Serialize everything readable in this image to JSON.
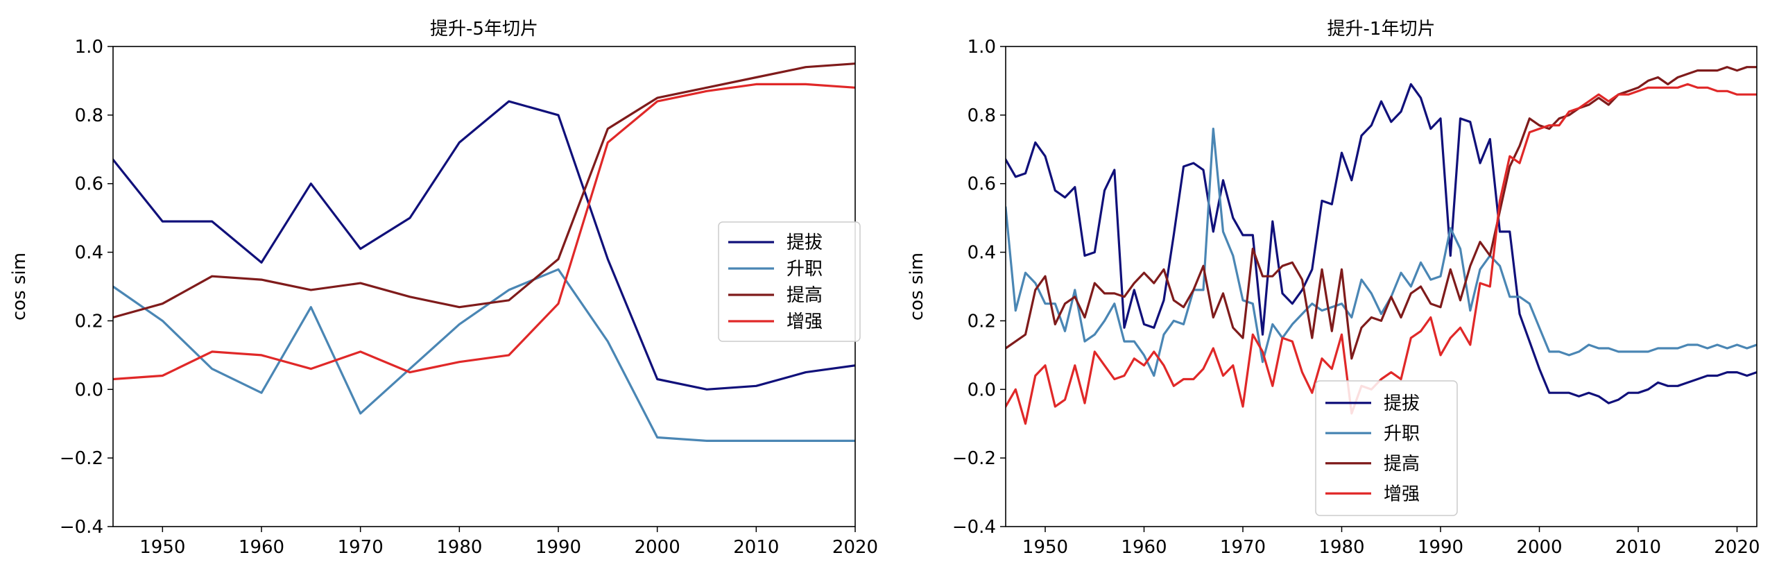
{
  "chart_data": [
    {
      "type": "line",
      "title": "提升-5年切片",
      "xlabel": "",
      "ylabel": "cos sim",
      "xlim": [
        1945,
        2020
      ],
      "ylim": [
        -0.4,
        1.0
      ],
      "xticks": [
        "1950",
        "1960",
        "1970",
        "1980",
        "1990",
        "2000",
        "2010",
        "2020"
      ],
      "yticks": [
        "−0.4",
        "−0.2",
        "0.0",
        "0.2",
        "0.4",
        "0.6",
        "0.8",
        "1.0"
      ],
      "legend_position": "center-right",
      "x": [
        1945,
        1950,
        1955,
        1960,
        1965,
        1970,
        1975,
        1980,
        1985,
        1990,
        1995,
        2000,
        2005,
        2010,
        2015,
        2020
      ],
      "series": [
        {
          "name": "提拔",
          "color": "#10107a",
          "values": [
            0.67,
            0.49,
            0.49,
            0.37,
            0.6,
            0.41,
            0.5,
            0.72,
            0.84,
            0.8,
            0.38,
            0.03,
            0.0,
            0.01,
            0.05,
            0.07
          ]
        },
        {
          "name": "升职",
          "color": "#4a86b4",
          "values": [
            0.3,
            0.2,
            0.06,
            -0.01,
            0.24,
            -0.07,
            0.06,
            0.19,
            0.29,
            0.35,
            0.14,
            -0.14,
            -0.15,
            -0.15,
            -0.15,
            -0.15
          ]
        },
        {
          "name": "提高",
          "color": "#7f1b1b",
          "values": [
            0.21,
            0.25,
            0.33,
            0.32,
            0.29,
            0.31,
            0.27,
            0.24,
            0.26,
            0.38,
            0.76,
            0.85,
            0.88,
            0.91,
            0.94,
            0.95
          ]
        },
        {
          "name": "增强",
          "color": "#e02828",
          "values": [
            0.03,
            0.04,
            0.11,
            0.1,
            0.06,
            0.11,
            0.05,
            0.08,
            0.1,
            0.25,
            0.72,
            0.84,
            0.87,
            0.89,
            0.89,
            0.88
          ]
        }
      ]
    },
    {
      "type": "line",
      "title": "提升-1年切片",
      "xlabel": "",
      "ylabel": "cos sim",
      "xlim": [
        1946,
        2022
      ],
      "ylim": [
        -0.4,
        1.0
      ],
      "xticks": [
        "1950",
        "1960",
        "1970",
        "1980",
        "1990",
        "2000",
        "2010",
        "2020"
      ],
      "yticks": [
        "−0.4",
        "−0.2",
        "0.0",
        "0.2",
        "0.4",
        "0.6",
        "0.8",
        "1.0"
      ],
      "legend_position": "lower-center",
      "x": [
        1946,
        1947,
        1948,
        1949,
        1950,
        1951,
        1952,
        1953,
        1954,
        1955,
        1956,
        1957,
        1958,
        1959,
        1960,
        1961,
        1962,
        1963,
        1964,
        1965,
        1966,
        1967,
        1968,
        1969,
        1970,
        1971,
        1972,
        1973,
        1974,
        1975,
        1976,
        1977,
        1978,
        1979,
        1980,
        1981,
        1982,
        1983,
        1984,
        1985,
        1986,
        1987,
        1988,
        1989,
        1990,
        1991,
        1992,
        1993,
        1994,
        1995,
        1996,
        1997,
        1998,
        1999,
        2000,
        2001,
        2002,
        2003,
        2004,
        2005,
        2006,
        2007,
        2008,
        2009,
        2010,
        2011,
        2012,
        2013,
        2014,
        2015,
        2016,
        2017,
        2018,
        2019,
        2020,
        2021,
        2022
      ],
      "series": [
        {
          "name": "提拔",
          "color": "#10107a",
          "values": [
            0.67,
            0.62,
            0.63,
            0.72,
            0.68,
            0.58,
            0.56,
            0.59,
            0.39,
            0.4,
            0.58,
            0.64,
            0.18,
            0.29,
            0.19,
            0.18,
            0.26,
            0.45,
            0.65,
            0.66,
            0.64,
            0.46,
            0.61,
            0.5,
            0.45,
            0.45,
            0.16,
            0.49,
            0.28,
            0.25,
            0.29,
            0.35,
            0.55,
            0.54,
            0.69,
            0.61,
            0.74,
            0.77,
            0.84,
            0.78,
            0.81,
            0.89,
            0.85,
            0.76,
            0.79,
            0.39,
            0.79,
            0.78,
            0.66,
            0.73,
            0.46,
            0.46,
            0.22,
            0.14,
            0.06,
            -0.01,
            -0.01,
            -0.01,
            -0.02,
            -0.01,
            -0.02,
            -0.04,
            -0.03,
            -0.01,
            -0.01,
            0.0,
            0.02,
            0.01,
            0.01,
            0.02,
            0.03,
            0.04,
            0.04,
            0.05,
            0.05,
            0.04,
            0.05
          ]
        },
        {
          "name": "升职",
          "color": "#4a86b4",
          "values": [
            0.53,
            0.23,
            0.34,
            0.31,
            0.25,
            0.25,
            0.17,
            0.29,
            0.14,
            0.16,
            0.2,
            0.25,
            0.14,
            0.14,
            0.1,
            0.04,
            0.16,
            0.2,
            0.19,
            0.29,
            0.29,
            0.76,
            0.46,
            0.39,
            0.26,
            0.25,
            0.08,
            0.19,
            0.15,
            0.19,
            0.22,
            0.25,
            0.23,
            0.24,
            0.25,
            0.21,
            0.32,
            0.28,
            0.22,
            0.27,
            0.34,
            0.3,
            0.37,
            0.32,
            0.33,
            0.47,
            0.41,
            0.23,
            0.35,
            0.39,
            0.36,
            0.27,
            0.27,
            0.25,
            0.18,
            0.11,
            0.11,
            0.1,
            0.11,
            0.13,
            0.12,
            0.12,
            0.11,
            0.11,
            0.11,
            0.11,
            0.12,
            0.12,
            0.12,
            0.13,
            0.13,
            0.12,
            0.13,
            0.12,
            0.13,
            0.12,
            0.13
          ]
        },
        {
          "name": "提高",
          "color": "#7f1b1b",
          "values": [
            0.12,
            0.14,
            0.16,
            0.29,
            0.33,
            0.19,
            0.25,
            0.27,
            0.21,
            0.31,
            0.28,
            0.28,
            0.27,
            0.31,
            0.34,
            0.31,
            0.35,
            0.26,
            0.24,
            0.29,
            0.36,
            0.21,
            0.28,
            0.18,
            0.15,
            0.41,
            0.33,
            0.33,
            0.36,
            0.37,
            0.32,
            0.15,
            0.35,
            0.17,
            0.35,
            0.09,
            0.18,
            0.21,
            0.2,
            0.27,
            0.21,
            0.28,
            0.3,
            0.25,
            0.24,
            0.35,
            0.26,
            0.36,
            0.43,
            0.39,
            0.52,
            0.65,
            0.71,
            0.79,
            0.77,
            0.76,
            0.79,
            0.8,
            0.82,
            0.83,
            0.85,
            0.83,
            0.86,
            0.87,
            0.88,
            0.9,
            0.91,
            0.89,
            0.91,
            0.92,
            0.93,
            0.93,
            0.93,
            0.94,
            0.93,
            0.94,
            0.94
          ]
        },
        {
          "name": "增强",
          "color": "#e02828",
          "values": [
            -0.05,
            0.0,
            -0.1,
            0.04,
            0.07,
            -0.05,
            -0.03,
            0.07,
            -0.04,
            0.11,
            0.07,
            0.03,
            0.04,
            0.09,
            0.07,
            0.11,
            0.07,
            0.01,
            0.03,
            0.03,
            0.06,
            0.12,
            0.04,
            0.07,
            -0.05,
            0.16,
            0.11,
            0.01,
            0.15,
            0.14,
            0.05,
            -0.01,
            0.09,
            0.06,
            0.16,
            -0.07,
            0.01,
            0.0,
            0.03,
            0.05,
            0.03,
            0.15,
            0.17,
            0.21,
            0.1,
            0.15,
            0.18,
            0.13,
            0.31,
            0.3,
            0.55,
            0.68,
            0.66,
            0.75,
            0.76,
            0.77,
            0.77,
            0.81,
            0.82,
            0.84,
            0.86,
            0.84,
            0.86,
            0.86,
            0.87,
            0.88,
            0.88,
            0.88,
            0.88,
            0.89,
            0.88,
            0.88,
            0.87,
            0.87,
            0.86,
            0.86,
            0.86
          ]
        }
      ]
    }
  ]
}
